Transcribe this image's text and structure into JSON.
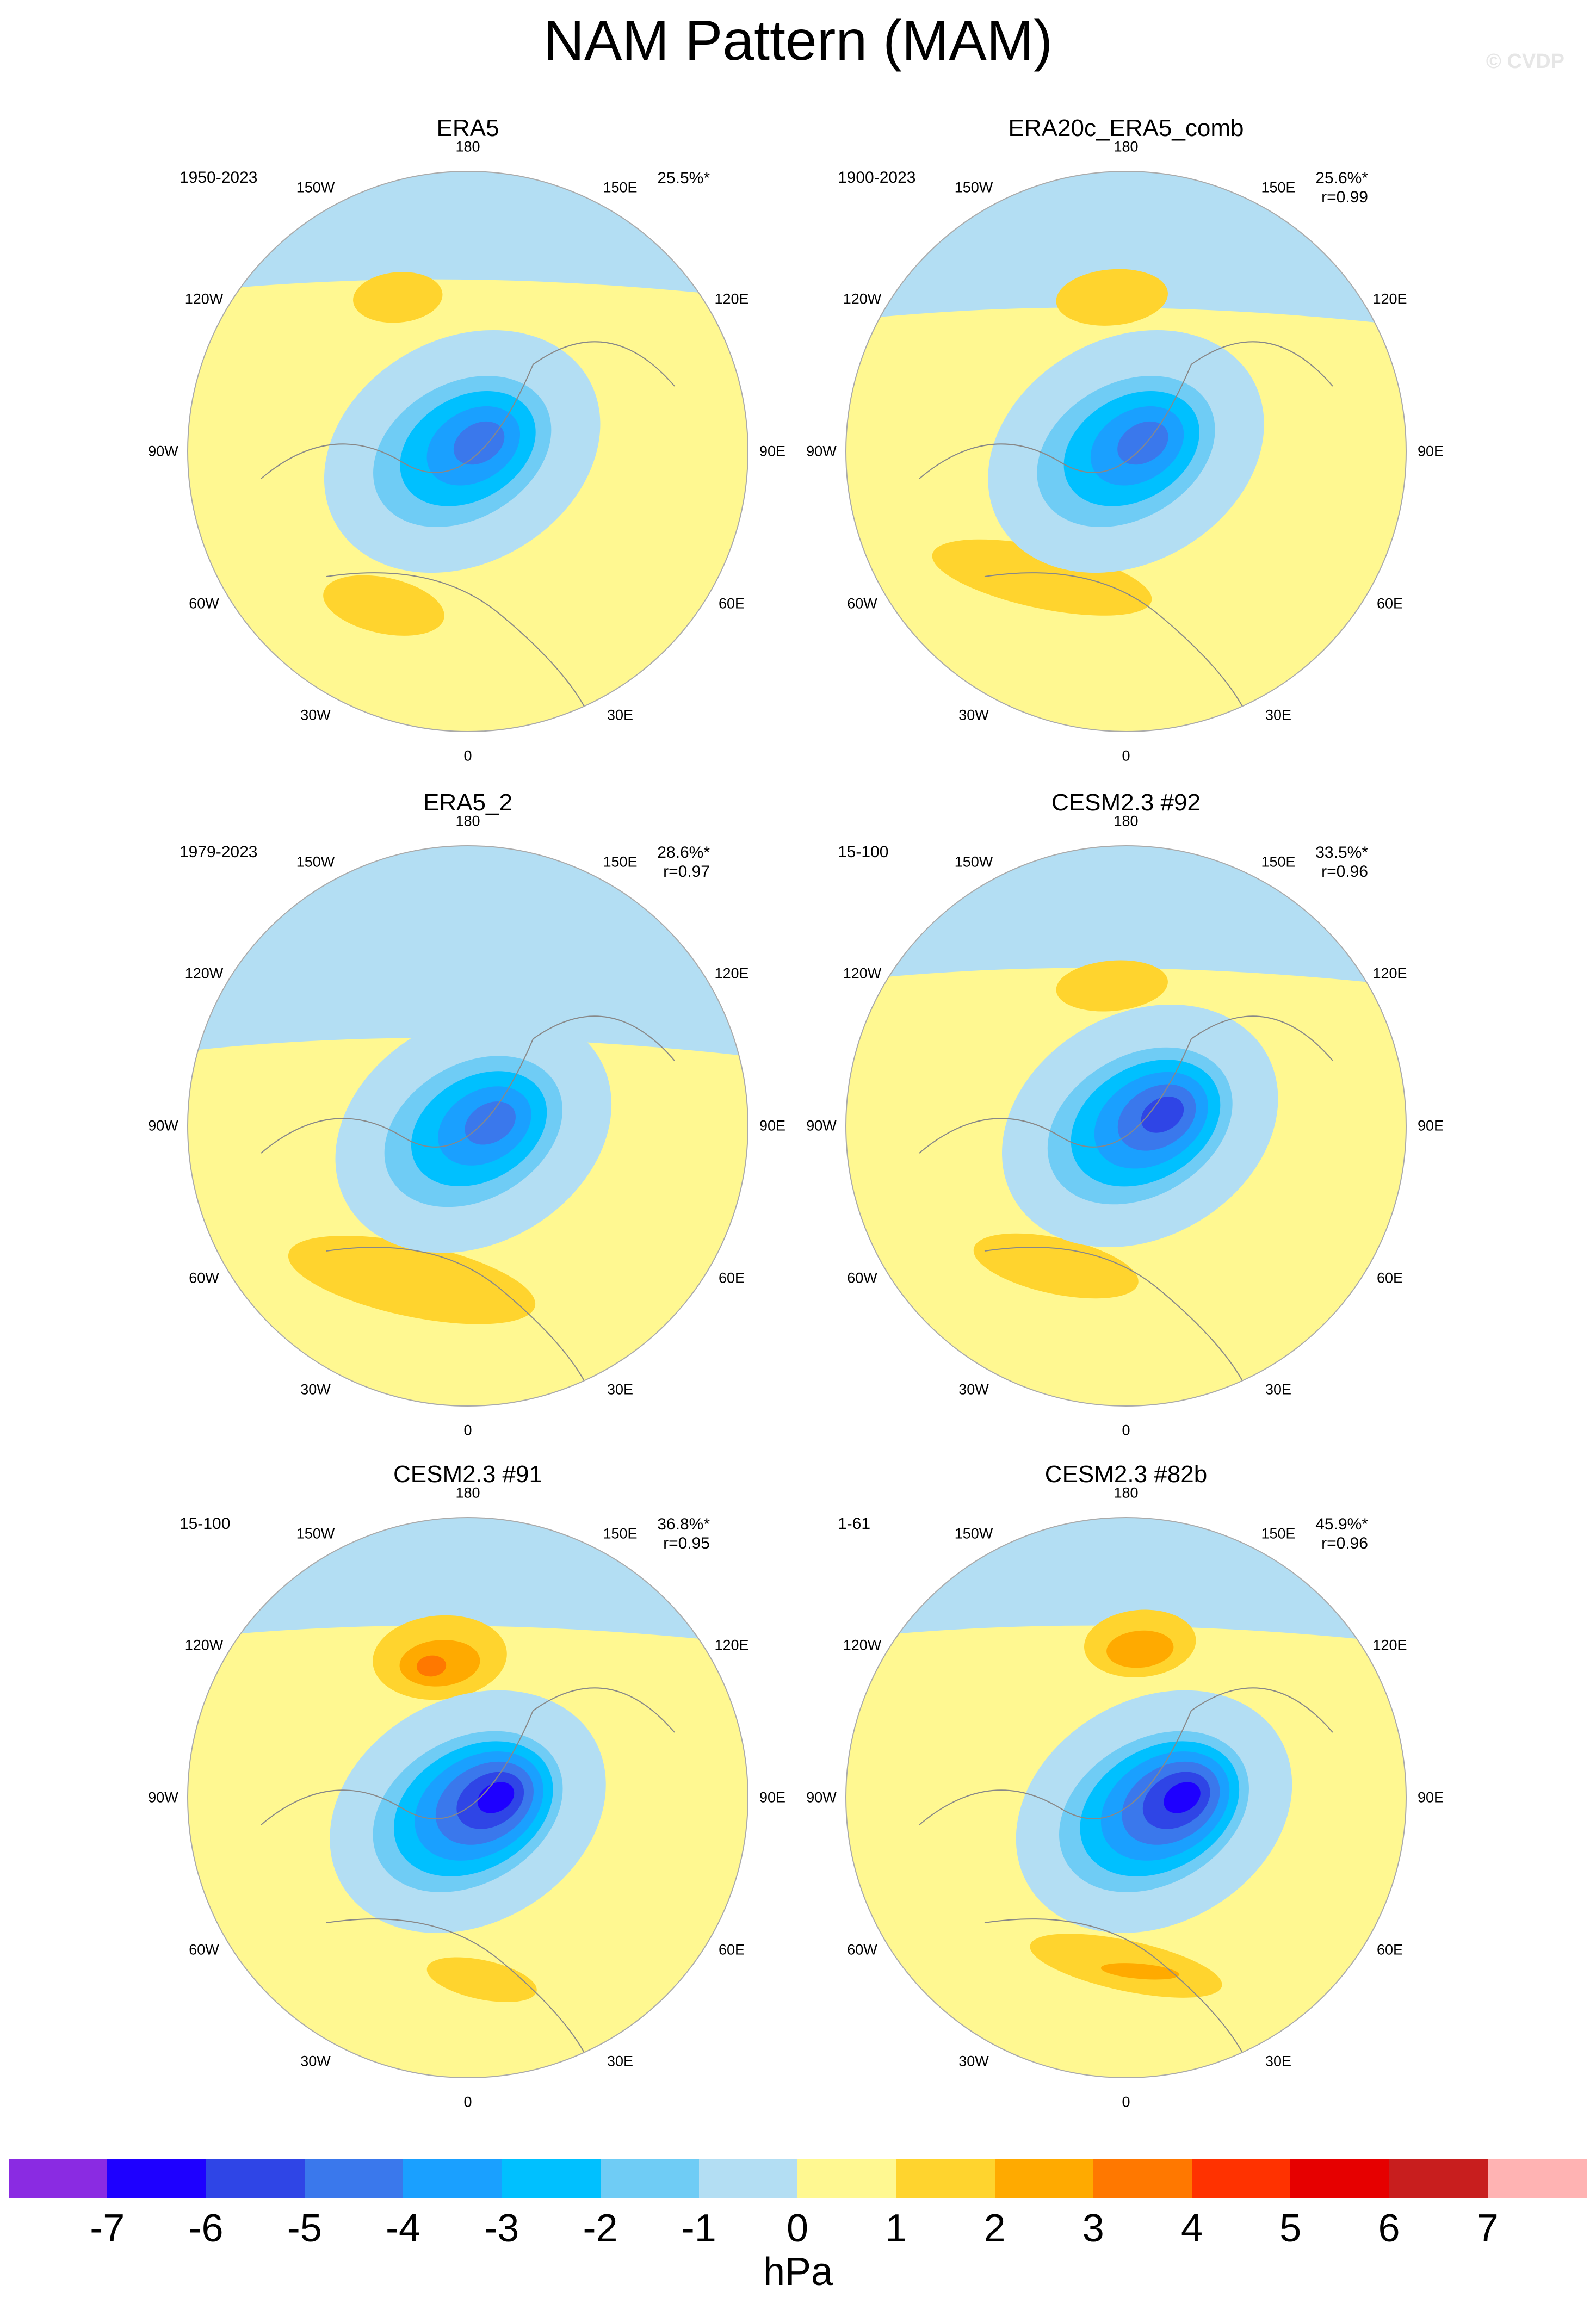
{
  "title": "NAM Pattern (MAM)",
  "watermark": "© CVDP",
  "longitude_labels": [
    "180",
    "150E",
    "120E",
    "90E",
    "60E",
    "30E",
    "0",
    "30W",
    "60W",
    "90W",
    "120W",
    "150W"
  ],
  "panels": [
    {
      "title": "ERA5",
      "period": "1950-2023",
      "variance": "25.5%*",
      "r": ""
    },
    {
      "title": "ERA20c_ERA5_comb",
      "period": "1900-2023",
      "variance": "25.6%*",
      "r": "r=0.99"
    },
    {
      "title": "ERA5_2",
      "period": "1979-2023",
      "variance": "28.6%*",
      "r": "r=0.97"
    },
    {
      "title": "CESM2.3 #92",
      "period": "15-100",
      "variance": "33.5%*",
      "r": "r=0.96"
    },
    {
      "title": "CESM2.3 #91",
      "period": "15-100",
      "variance": "36.8%*",
      "r": "r=0.95"
    },
    {
      "title": "CESM2.3 #82b",
      "period": "1-61",
      "variance": "45.9%*",
      "r": "r=0.96"
    }
  ],
  "colorbar": {
    "units": "hPa",
    "ticks": [
      "-7",
      "-6",
      "-5",
      "-4",
      "-3",
      "-2",
      "-1",
      "0",
      "1",
      "2",
      "3",
      "4",
      "5",
      "6",
      "7"
    ],
    "colors": [
      "#8a2be2",
      "#1e00ff",
      "#2f45e6",
      "#3a78ec",
      "#1aa0ff",
      "#00c0ff",
      "#6fccf5",
      "#b3def3",
      "#fff891",
      "#ffd42e",
      "#ffaa00",
      "#ff7800",
      "#ff3200",
      "#e60000",
      "#c81e1e",
      "#ffb3b3"
    ]
  },
  "colors": {
    "background_positive": "#fff891",
    "light_negative": "#b3def3",
    "land_outline": "#888888",
    "frame": "#aaaaaa"
  }
}
